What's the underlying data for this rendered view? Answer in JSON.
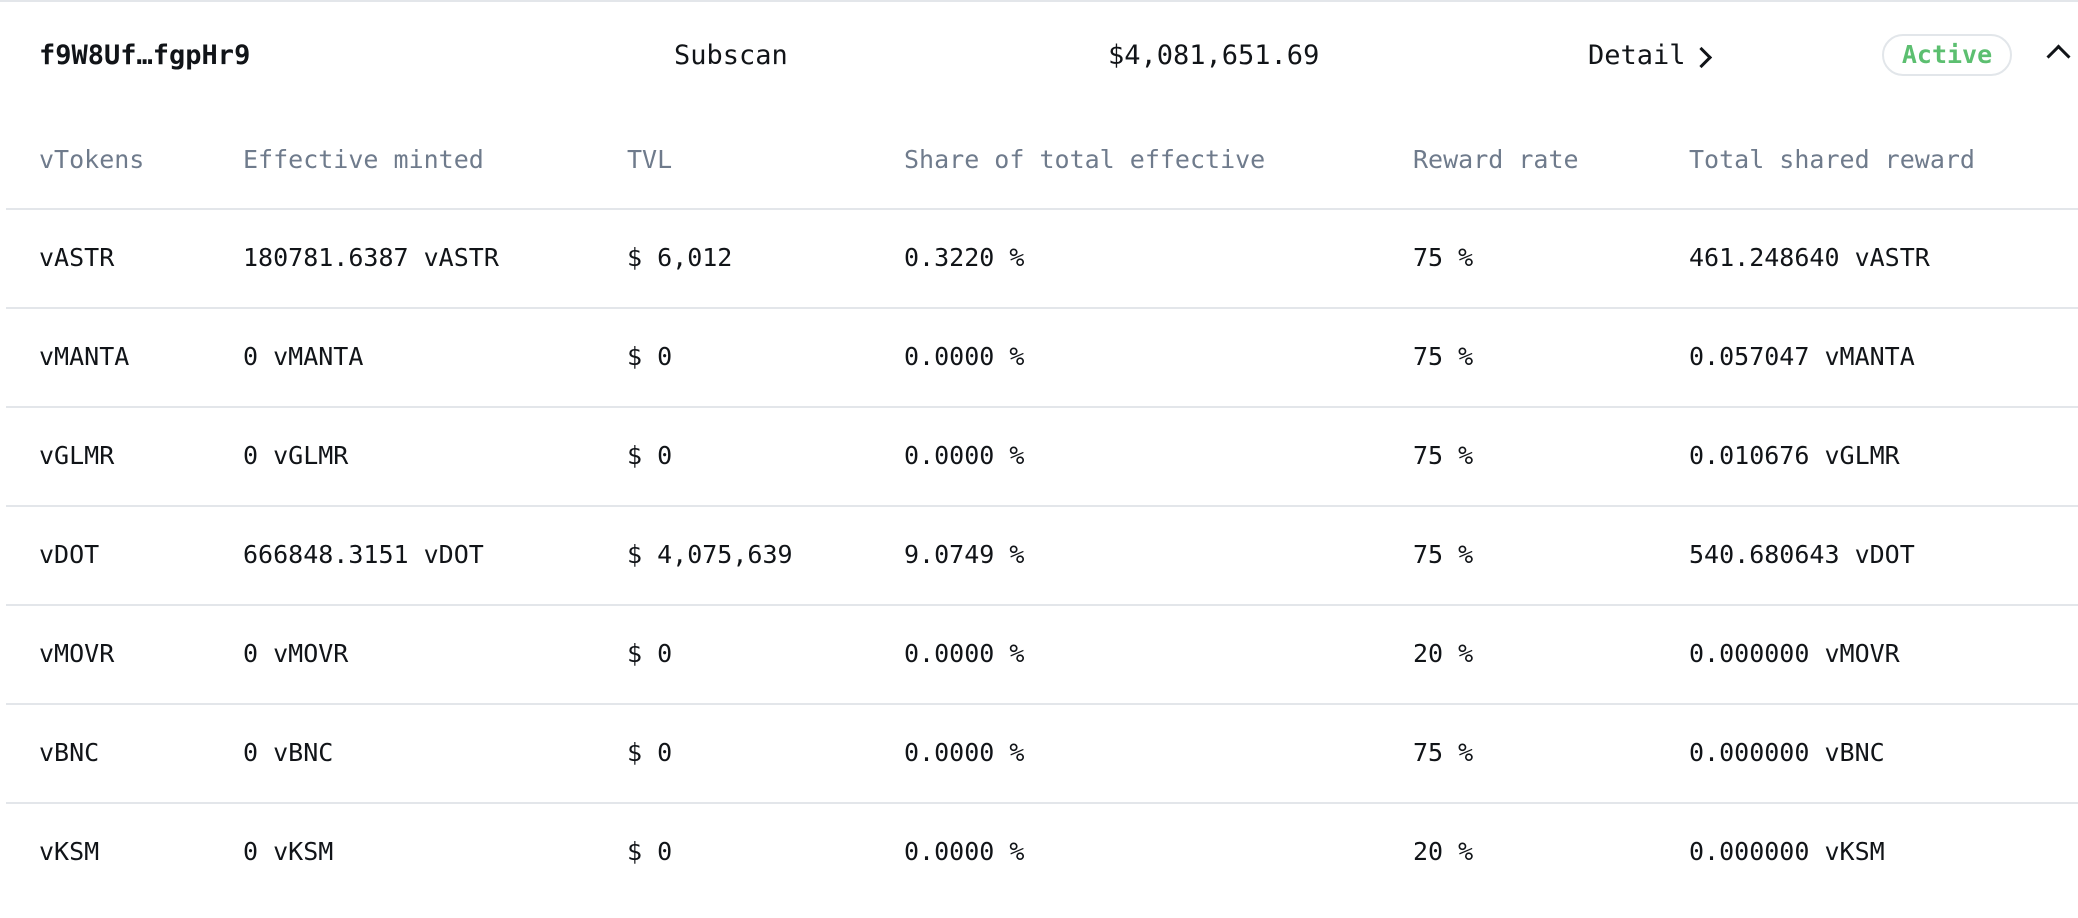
{
  "summary": {
    "address": "f9W8Uf…fgpHr9",
    "explorer": "Subscan",
    "total_value": "$4,081,651.69",
    "detail_label": "Detail",
    "status": "Active",
    "status_color": "#5cbf70",
    "collapse_icon": "chevron-up-icon",
    "detail_icon": "chevron-right-icon"
  },
  "table": {
    "headers": [
      "vTokens",
      "Effective minted",
      "TVL",
      "Share of total effective",
      "Reward rate",
      "Total shared reward"
    ],
    "rows": [
      {
        "token": "vASTR",
        "minted": "180781.6387 vASTR",
        "tvl": "$ 6,012",
        "share": "0.3220 %",
        "rate": "75 %",
        "reward": "461.248640 vASTR"
      },
      {
        "token": "vMANTA",
        "minted": "0 vMANTA",
        "tvl": "$ 0",
        "share": "0.0000 %",
        "rate": "75 %",
        "reward": "0.057047 vMANTA"
      },
      {
        "token": "vGLMR",
        "minted": "0 vGLMR",
        "tvl": "$ 0",
        "share": "0.0000 %",
        "rate": "75 %",
        "reward": "0.010676 vGLMR"
      },
      {
        "token": "vDOT",
        "minted": "666848.3151 vDOT",
        "tvl": "$ 4,075,639",
        "share": "9.0749 %",
        "rate": "75 %",
        "reward": "540.680643 vDOT"
      },
      {
        "token": "vMOVR",
        "minted": "0 vMOVR",
        "tvl": "$ 0",
        "share": "0.0000 %",
        "rate": "20 %",
        "reward": "0.000000 vMOVR"
      },
      {
        "token": "vBNC",
        "minted": "0 vBNC",
        "tvl": "$ 0",
        "share": "0.0000 %",
        "rate": "75 %",
        "reward": "0.000000 vBNC"
      },
      {
        "token": "vKSM",
        "minted": "0 vKSM",
        "tvl": "$ 0",
        "share": "0.0000 %",
        "rate": "20 %",
        "reward": "0.000000 vKSM"
      }
    ]
  }
}
